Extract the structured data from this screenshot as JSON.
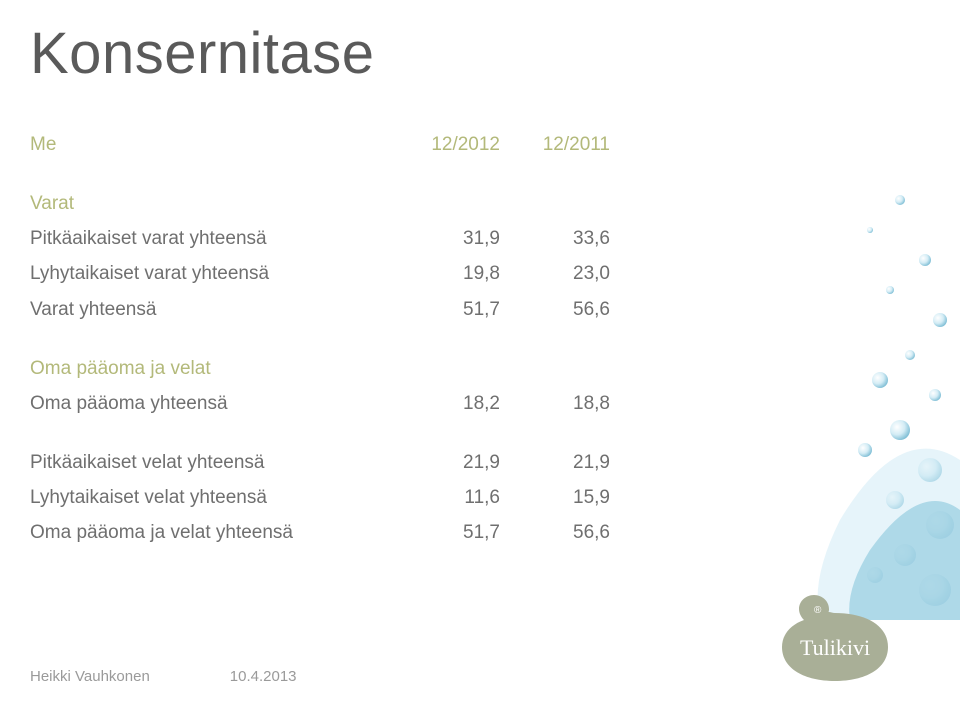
{
  "title": "Konsernitase",
  "colors": {
    "text": "#6f6f6f",
    "accent": "#b3b97a",
    "title": "#5a5a5a",
    "footer": "#9a9a9a",
    "logo_bg": "#a9af97",
    "logo_text": "#ffffff",
    "background": "#ffffff",
    "water_light": "#d0ebf5",
    "water_dark": "#6fb6d0"
  },
  "table": {
    "header": {
      "label": "Me",
      "col1": "12/2012",
      "col2": "12/2011"
    },
    "sections": [
      {
        "heading": "Varat",
        "rows": [
          {
            "label": "Pitkäaikaiset varat yhteensä",
            "col1": "31,9",
            "col2": "33,6"
          },
          {
            "label": "Lyhytaikaiset varat yhteensä",
            "col1": "19,8",
            "col2": "23,0"
          },
          {
            "label": "Varat yhteensä",
            "col1": "51,7",
            "col2": "56,6"
          }
        ]
      },
      {
        "heading": "Oma pääoma ja velat",
        "rows": [
          {
            "label": "Oma pääoma yhteensä",
            "col1": "18,2",
            "col2": "18,8"
          }
        ]
      },
      {
        "heading": "",
        "rows": [
          {
            "label": "Pitkäaikaiset velat yhteensä",
            "col1": "21,9",
            "col2": "21,9"
          },
          {
            "label": "Lyhytaikaiset velat yhteensä",
            "col1": "11,6",
            "col2": "15,9"
          },
          {
            "label": "Oma pääoma ja velat yhteensä",
            "col1": "51,7",
            "col2": "56,6"
          }
        ]
      }
    ]
  },
  "footer": {
    "author": "Heikki Vauhkonen",
    "date": "10.4.2013"
  },
  "logo": {
    "brand": "Tulikivi",
    "registered": "®"
  }
}
